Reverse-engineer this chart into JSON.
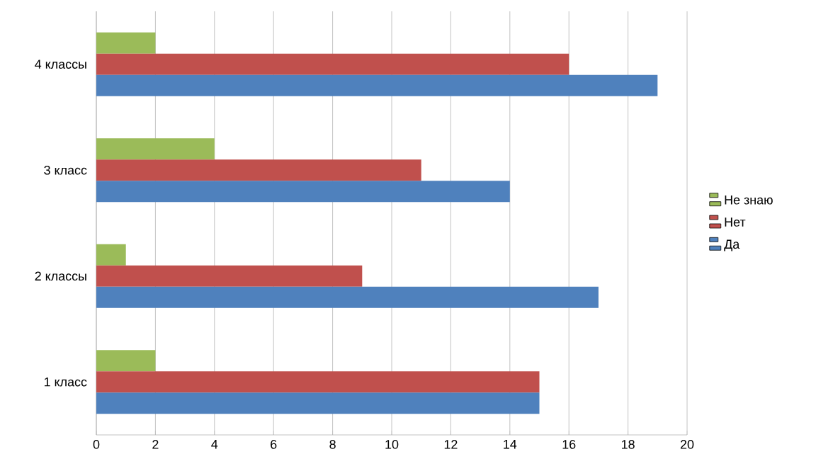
{
  "chart_data": {
    "type": "bar",
    "orientation": "horizontal",
    "categories": [
      "4 классы",
      "3 класс",
      "2 классы",
      "1 класс"
    ],
    "series": [
      {
        "name": "Не знаю",
        "color": "#9bbb59",
        "values": [
          2,
          4,
          1,
          2
        ]
      },
      {
        "name": "Нет",
        "color": "#c0504d",
        "values": [
          16,
          11,
          9,
          15
        ]
      },
      {
        "name": "Да",
        "color": "#4f81bd",
        "values": [
          19,
          14,
          17,
          15
        ]
      }
    ],
    "xlim": [
      0,
      20
    ],
    "xticks": [
      0,
      2,
      4,
      6,
      8,
      10,
      12,
      14,
      16,
      18,
      20
    ],
    "grid": "x",
    "legend": "right"
  }
}
